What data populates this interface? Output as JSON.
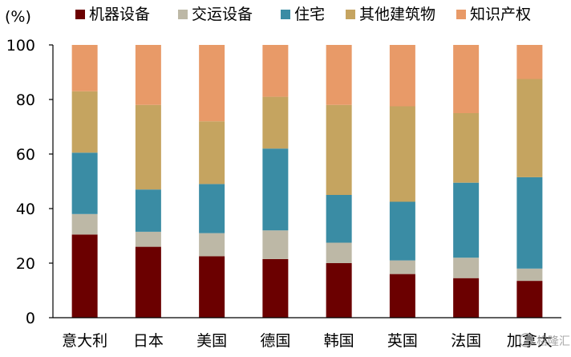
{
  "chart_data": {
    "type": "bar",
    "stacked": true,
    "unit_label": "(%)",
    "categories": [
      "意大利",
      "日本",
      "美国",
      "德国",
      "韩国",
      "英国",
      "法国",
      "加拿大"
    ],
    "series": [
      {
        "name": "机器设备",
        "color": "#6B0000",
        "values": [
          30.5,
          26,
          22.5,
          21.5,
          20,
          16,
          14.5,
          13.5
        ]
      },
      {
        "name": "交运设备",
        "color": "#BDB8A6",
        "values": [
          7.5,
          5.5,
          8.5,
          10.5,
          7.5,
          5,
          7.5,
          4.5
        ]
      },
      {
        "name": "住宅",
        "color": "#3A8CA4",
        "values": [
          22.5,
          15.5,
          18,
          30,
          17.5,
          21.5,
          27.5,
          33.5
        ]
      },
      {
        "name": "其他建筑物",
        "color": "#C5A460",
        "values": [
          22.5,
          31,
          23,
          19,
          33,
          35,
          25.5,
          36
        ]
      },
      {
        "name": "知识产权",
        "color": "#E89A68",
        "values": [
          17,
          22,
          28,
          19,
          22,
          22.5,
          25,
          12.5
        ]
      }
    ],
    "y_axis": {
      "min": 0,
      "max": 100,
      "ticks": [
        0,
        20,
        40,
        60,
        80,
        100
      ]
    },
    "legend_position": "top",
    "grid": false
  },
  "watermark": "格隆汇"
}
